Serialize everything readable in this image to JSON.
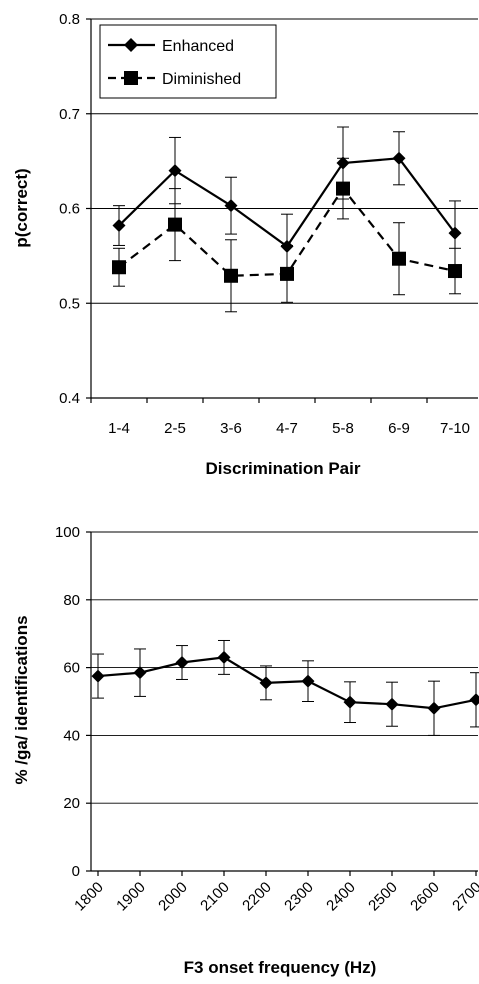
{
  "chart_data": [
    {
      "type": "line",
      "ylabel": "p(correct)",
      "xlabel": "Discrimination Pair",
      "ylim": [
        0.4,
        0.8
      ],
      "yticks": [
        "0.4",
        "0.5",
        "0.6",
        "0.7",
        "0.8"
      ],
      "ytick_values": [
        0.4,
        0.5,
        0.6,
        0.7,
        0.8
      ],
      "grid": true,
      "legend_position": "top-left",
      "categories": [
        "1-4",
        "2-5",
        "3-6",
        "4-7",
        "5-8",
        "6-9",
        "7-10"
      ],
      "series": [
        {
          "name": "Enhanced",
          "values": [
            0.582,
            0.64,
            0.603,
            0.56,
            0.648,
            0.653,
            0.574
          ],
          "errors": [
            0.021,
            0.035,
            0.03,
            0.034,
            0.038,
            0.028,
            0.034
          ]
        },
        {
          "name": "Diminished",
          "values": [
            0.538,
            0.583,
            0.529,
            0.531,
            0.621,
            0.547,
            0.534
          ],
          "errors": [
            0.02,
            0.038,
            0.038,
            0.03,
            0.032,
            0.038,
            0.024
          ]
        }
      ]
    },
    {
      "type": "line",
      "ylabel": "% /ga/ identifications",
      "xlabel": "F3 onset frequency (Hz)",
      "ylim": [
        0,
        100
      ],
      "yticks": [
        "0",
        "20",
        "40",
        "60",
        "80",
        "100"
      ],
      "ytick_values": [
        0,
        20,
        40,
        60,
        80,
        100
      ],
      "grid": true,
      "categories": [
        "1800",
        "1900",
        "2000",
        "2100",
        "2200",
        "2300",
        "2400",
        "2500",
        "2600",
        "2700"
      ],
      "series": [
        {
          "values": [
            57.5,
            58.5,
            61.5,
            63.0,
            55.5,
            56.0,
            49.8,
            49.2,
            48.0,
            50.5
          ],
          "errors": [
            6.5,
            7.0,
            5.0,
            5.0,
            5.0,
            6.0,
            6.0,
            6.5,
            8.0,
            8.0
          ]
        }
      ]
    }
  ]
}
